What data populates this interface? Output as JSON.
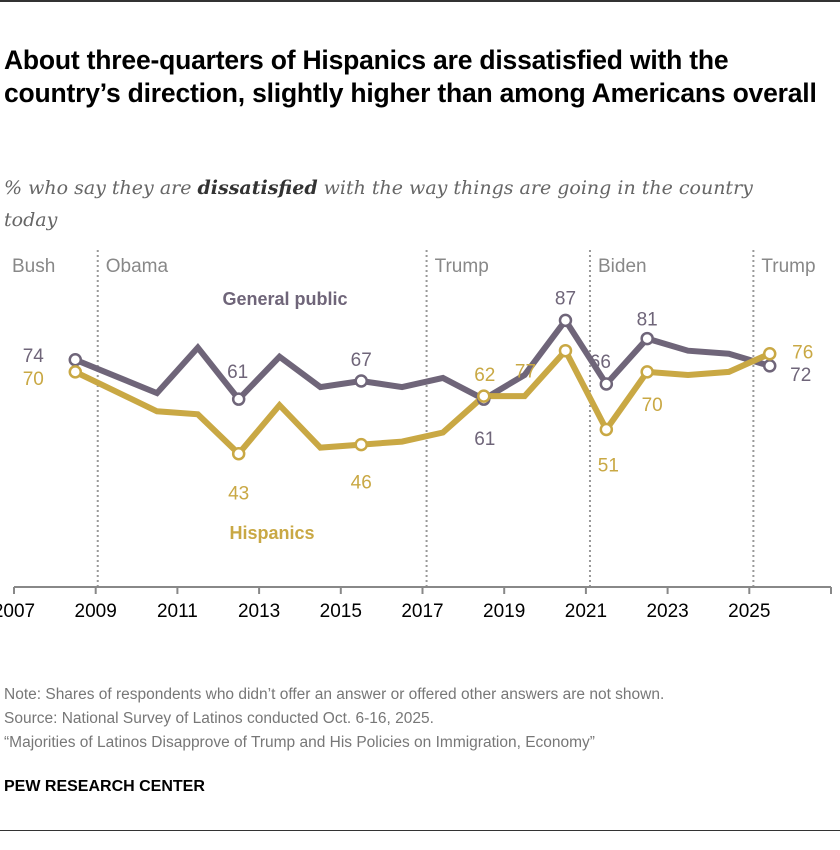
{
  "title": "About three-quarters of Hispanics are dissatisfied with the country’s direction, slightly higher than among Americans overall",
  "subtitle": {
    "pre": "% who say they are ",
    "bold": "dissatisfied",
    "post": " with the way things are going in the country today"
  },
  "chart_data": {
    "type": "line",
    "xlim": [
      2007,
      2027
    ],
    "ylim": [
      0,
      100
    ],
    "x_ticks": [
      2007,
      2009,
      2011,
      2013,
      2015,
      2017,
      2019,
      2021,
      2023,
      2025
    ],
    "grid": false,
    "x": [
      2008.5,
      2010.5,
      2011.5,
      2012.5,
      2013.5,
      2014.5,
      2015.5,
      2016.5,
      2017.5,
      2018.5,
      2019.5,
      2020.5,
      2021.5,
      2022.5,
      2023.5,
      2024.5,
      2025.5
    ],
    "series": [
      {
        "name": "General public",
        "color": "#6f6579",
        "values": [
          74,
          63,
          78,
          61,
          75,
          65,
          67,
          65,
          68,
          61,
          69,
          87,
          66,
          81,
          77,
          76,
          72
        ],
        "labels": {
          "0": "74",
          "3": "61",
          "6": "67",
          "9": "61",
          "11": "87",
          "12": "66",
          "13": "81",
          "16": "72"
        }
      },
      {
        "name": "Hispanics",
        "color": "#c9a844",
        "values": [
          70,
          57,
          56,
          43,
          59,
          45,
          46,
          47,
          50,
          62,
          62,
          77,
          51,
          70,
          69,
          70,
          76
        ],
        "labels": {
          "0": "70",
          "3": "43",
          "6": "46",
          "9": "62",
          "11": "77",
          "12": "51",
          "13": "70",
          "16": "76"
        }
      }
    ],
    "eras": [
      {
        "label": "Bush",
        "start": 2007
      },
      {
        "label": "Obama",
        "start": 2009.05
      },
      {
        "label": "Trump",
        "start": 2017.1
      },
      {
        "label": "Biden",
        "start": 2021.1
      },
      {
        "label": "Trump",
        "start": 2025.1
      }
    ]
  },
  "notes": {
    "note": "Note: Shares of respondents who didn’t offer an answer or offered other answers are not shown.",
    "source": "Source: National Survey of Latinos conducted Oct. 6-16, 2025.",
    "report": "“Majorities of Latinos Disapprove of Trump and His Policies on Immigration, Economy”"
  },
  "logo": "PEW RESEARCH CENTER"
}
